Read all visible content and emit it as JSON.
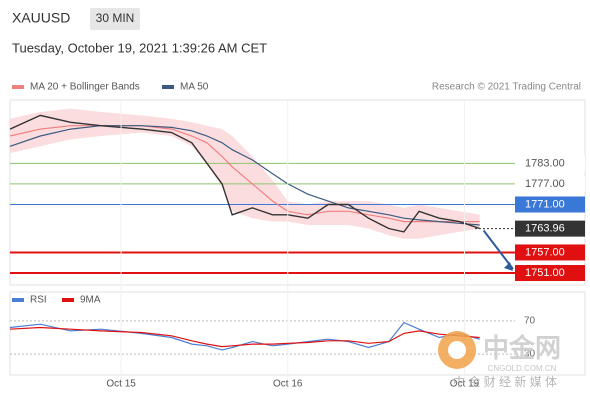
{
  "header": {
    "symbol": "XAUUSD",
    "timeframe": "30 MIN",
    "timestamp": "Tuesday, October 19, 2021 1:39:26 AM CET",
    "credit": "Research © 2021 Trading Central"
  },
  "watermark": {
    "brand": "中金网",
    "site": "CNGOLD.COM.CN",
    "slogan": "中 金 财 经 新 媒 体"
  },
  "chart_data": [
    {
      "type": "line",
      "x": [
        0,
        6,
        12,
        18,
        26,
        32,
        36,
        39,
        42,
        44,
        48,
        52,
        55,
        59,
        63,
        67,
        71,
        75,
        78,
        81,
        85,
        89,
        93
      ],
      "xlim": [
        0,
        100
      ],
      "ylim": [
        1747.5,
        1801.5
      ],
      "price": {
        "color": "#333333",
        "values": [
          1793,
          1797,
          1795,
          1794,
          1793,
          1792,
          1789,
          1783,
          1777,
          1768,
          1770,
          1768,
          1768,
          1767,
          1771,
          1771,
          1767,
          1764,
          1763,
          1769,
          1767,
          1766,
          1764
        ]
      },
      "series": [
        {
          "name": "MA 20 + Bollinger Bands",
          "color": "#f08080",
          "band_color": "#fbd5d7",
          "values": [
            1791,
            1793,
            1794,
            1794,
            1794,
            1793,
            1791,
            1789,
            1785,
            1782,
            1777,
            1772,
            1769,
            1768,
            1769,
            1769,
            1768,
            1767,
            1766,
            1766,
            1766,
            1766,
            1766
          ],
          "upper": [
            1796,
            1798,
            1799,
            1798,
            1797,
            1796,
            1795,
            1794,
            1793,
            1791,
            1785,
            1778,
            1772,
            1771,
            1772,
            1772,
            1772,
            1771,
            1770,
            1771,
            1770,
            1769,
            1768
          ],
          "lower": [
            1786,
            1788,
            1790,
            1791,
            1792,
            1791,
            1788,
            1783,
            1776,
            1769,
            1767,
            1766,
            1766,
            1765,
            1765,
            1765,
            1764,
            1762,
            1761,
            1761,
            1762,
            1763,
            1764
          ]
        },
        {
          "name": "MA 50",
          "color": "#3d5a80",
          "values": [
            1788,
            1791,
            1793,
            1794,
            1794,
            1793.5,
            1792.5,
            1791,
            1789,
            1787,
            1784,
            1780,
            1777,
            1774,
            1772,
            1770,
            1769,
            1768,
            1767,
            1766.5,
            1766,
            1765.5,
            1765
          ]
        }
      ],
      "levels": [
        {
          "value": 1783,
          "label": "1783.00",
          "color": "#8dc46b"
        },
        {
          "value": 1777,
          "label": "1777.00",
          "color": "#8dc46b"
        },
        {
          "value": 1771,
          "label": "1771.00",
          "color": "#3a78d8"
        },
        {
          "value": 1763.96,
          "label": "1763.96",
          "color": "#333333"
        },
        {
          "value": 1757,
          "label": "1757.00",
          "color": "#e01010"
        },
        {
          "value": 1751,
          "label": "1751.00",
          "color": "#e01010"
        }
      ]
    },
    {
      "type": "line",
      "x": [
        0,
        6,
        12,
        18,
        26,
        32,
        36,
        39,
        42,
        44,
        48,
        52,
        55,
        59,
        63,
        67,
        71,
        75,
        78,
        81,
        85,
        89,
        93
      ],
      "xlim": [
        0,
        100
      ],
      "xticks": [
        {
          "value": 22,
          "label": "Oct 15"
        },
        {
          "value": 55,
          "label": "Oct 16"
        },
        {
          "value": 90,
          "label": "Oct 19"
        }
      ],
      "ylim": [
        0,
        100
      ],
      "yticks": [
        70,
        30
      ],
      "series": [
        {
          "name": "RSI",
          "color": "#4a7fd4",
          "values": [
            62,
            66,
            58,
            60,
            55,
            50,
            42,
            40,
            35,
            38,
            45,
            40,
            42,
            45,
            48,
            45,
            38,
            45,
            68,
            60,
            50,
            55,
            48
          ]
        },
        {
          "name": "9MA",
          "color": "#e01010",
          "values": [
            60,
            62,
            60,
            58,
            56,
            52,
            46,
            42,
            39,
            40,
            42,
            42,
            43,
            44,
            46,
            46,
            43,
            45,
            55,
            58,
            54,
            52,
            50
          ]
        }
      ]
    }
  ]
}
